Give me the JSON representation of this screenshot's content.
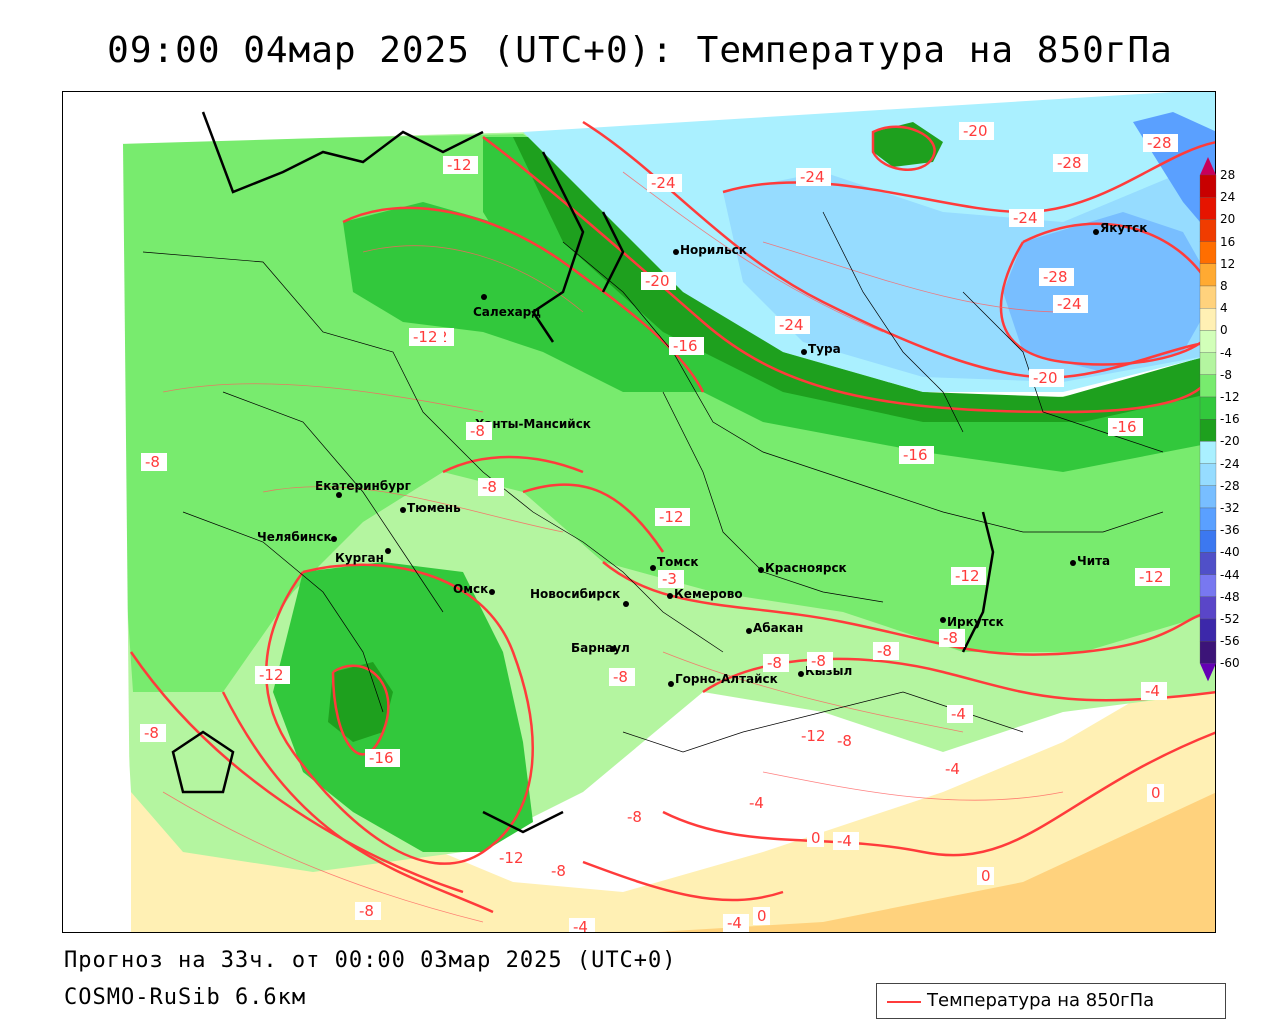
{
  "header": {
    "title": "09:00 04мар 2025 (UTC+0): Температура на 850гПа"
  },
  "footer": {
    "forecast": "Прогноз на 33ч. от 00:00 03мар 2025 (UTC+0)",
    "model": "COSMO-RuSib 6.6км"
  },
  "legend": {
    "label": "Температура на 850гПа",
    "line_color": "#ff3b3b"
  },
  "colorbar": {
    "ticks": [
      "28",
      "24",
      "20",
      "16",
      "12",
      "8",
      "4",
      "0",
      "-4",
      "-8",
      "-12",
      "-16",
      "-20",
      "-24",
      "-28",
      "-32",
      "-36",
      "-40",
      "-44",
      "-48",
      "-52",
      "-56",
      "-60"
    ],
    "colors": [
      "#c8005a",
      "#c80000",
      "#e61400",
      "#f03c00",
      "#ff6e00",
      "#ffaa32",
      "#ffd27d",
      "#fff0b4",
      "#d2ffb9",
      "#b4f5a0",
      "#78eb6e",
      "#32c83c",
      "#1ea01e",
      "#aaf0ff",
      "#96dcff",
      "#78beff",
      "#5aa0ff",
      "#3c78f0",
      "#5050c8",
      "#7878f0",
      "#5a46c8",
      "#3c28aa",
      "#3c1478",
      "#6400b4"
    ]
  },
  "cities": [
    {
      "name": "Салехард"
    },
    {
      "name": "Норильск"
    },
    {
      "name": "Якутск"
    },
    {
      "name": "Тура"
    },
    {
      "name": "Ханты-Мансийск"
    },
    {
      "name": "Екатеринбург"
    },
    {
      "name": "Тюмень"
    },
    {
      "name": "Челябинск"
    },
    {
      "name": "Курган"
    },
    {
      "name": "Омск"
    },
    {
      "name": "Новосибирск"
    },
    {
      "name": "Томск"
    },
    {
      "name": "Кемерово"
    },
    {
      "name": "Красноярск"
    },
    {
      "name": "Абакан"
    },
    {
      "name": "Барнаул"
    },
    {
      "name": "Горно-Алтайск"
    },
    {
      "name": "Кызыл"
    },
    {
      "name": "Иркутск"
    },
    {
      "name": "Чита"
    }
  ],
  "isolines": [
    {
      "value": "-12"
    },
    {
      "value": "-24"
    },
    {
      "value": "-24"
    },
    {
      "value": "-20"
    },
    {
      "value": "-28"
    },
    {
      "value": "-28"
    },
    {
      "value": "-24"
    },
    {
      "value": "-28"
    },
    {
      "value": "-20"
    },
    {
      "value": "-16"
    },
    {
      "value": "-24"
    },
    {
      "value": "-12"
    },
    {
      "value": "-8"
    },
    {
      "value": "-8"
    },
    {
      "value": "-8"
    },
    {
      "value": "-12"
    },
    {
      "value": "-12"
    },
    {
      "value": "-3"
    },
    {
      "value": "-12"
    },
    {
      "value": "-12"
    },
    {
      "value": "-16"
    },
    {
      "value": "-8"
    },
    {
      "value": "-8"
    },
    {
      "value": "-8"
    },
    {
      "value": "-8"
    },
    {
      "value": "-8"
    },
    {
      "value": "-4"
    },
    {
      "value": "-4"
    },
    {
      "value": "-4"
    },
    {
      "value": "-4"
    },
    {
      "value": "-12"
    },
    {
      "value": "-8"
    },
    {
      "value": "0"
    },
    {
      "value": "-4"
    },
    {
      "value": "0"
    },
    {
      "value": "0"
    },
    {
      "value": "-8"
    },
    {
      "value": "-12"
    },
    {
      "value": "-8"
    },
    {
      "value": "-8"
    },
    {
      "value": "-4"
    },
    {
      "value": "-4"
    },
    {
      "value": "0"
    },
    {
      "value": "-24"
    },
    {
      "value": "-20"
    },
    {
      "value": "-16"
    },
    {
      "value": "-16"
    },
    {
      "value": "-8"
    },
    {
      "value": "-12"
    }
  ]
}
